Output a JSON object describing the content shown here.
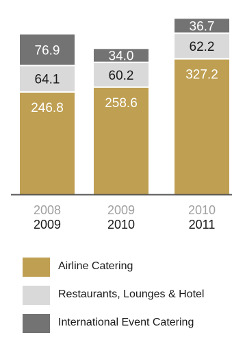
{
  "chart_data": {
    "type": "bar",
    "stacked": true,
    "categories": [
      {
        "top": "2008",
        "bottom": "2009"
      },
      {
        "top": "2009",
        "bottom": "2010"
      },
      {
        "top": "2010",
        "bottom": "2011"
      }
    ],
    "series": [
      {
        "name": "Airline Catering",
        "color": "#bf9f52",
        "label_color": "#ffffff",
        "values": [
          246.8,
          258.6,
          327.2
        ],
        "labels": [
          "246.8",
          "258.6",
          "327.2"
        ]
      },
      {
        "name": "Restaurants, Lounges & Hotel",
        "color": "#d9d9d9",
        "label_color": "#1a1a1a",
        "values": [
          64.1,
          60.2,
          62.2
        ],
        "labels": [
          "64.1",
          "60.2",
          "62.2"
        ]
      },
      {
        "name": "International Event Catering",
        "color": "#737373",
        "label_color": "#ffffff",
        "values": [
          76.9,
          34.0,
          36.7
        ],
        "labels": [
          "76.9",
          "34.0",
          "36.7"
        ]
      }
    ],
    "legend_position": "bottom-left",
    "grid": false,
    "axis_line_color": "#555555",
    "tick_top_color": "#a0a0a0",
    "tick_bottom_color": "#1a1a1a"
  }
}
